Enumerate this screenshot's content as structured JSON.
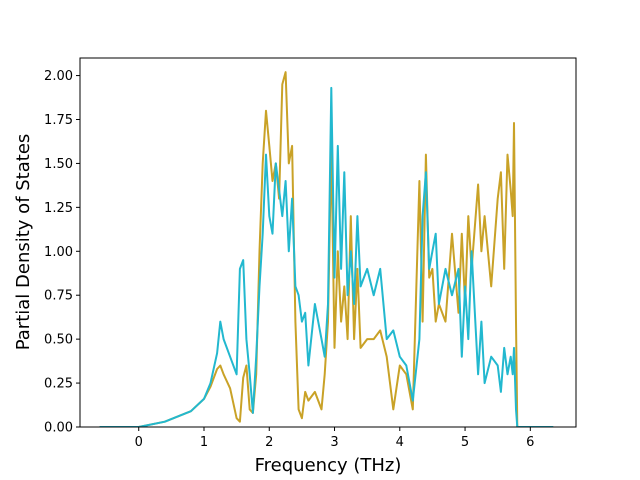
{
  "chart_data": {
    "type": "line",
    "title": "",
    "xlabel": "Frequency (THz)",
    "ylabel": "Partial Density of States",
    "xlim": [
      -0.9,
      6.7
    ],
    "ylim": [
      0,
      2.1
    ],
    "x_ticks": [
      0,
      1,
      2,
      3,
      4,
      5,
      6
    ],
    "y_ticks": [
      0.0,
      0.25,
      0.5,
      0.75,
      1.0,
      1.25,
      1.5,
      1.75,
      2.0
    ],
    "x_tick_labels": [
      "0",
      "1",
      "2",
      "3",
      "4",
      "5",
      "6"
    ],
    "y_tick_labels": [
      "0.00",
      "0.25",
      "0.50",
      "0.75",
      "1.00",
      "1.25",
      "1.50",
      "1.75",
      "2.00"
    ],
    "grid": false,
    "legend": "none",
    "colors": {
      "gold": "#c9a227",
      "teal": "#22b8cf",
      "red": "#d62728",
      "purple": "#9467bd"
    },
    "series": [
      {
        "color": "#c9a227",
        "x": [
          -0.6,
          0.0,
          0.4,
          0.8,
          1.0,
          1.1,
          1.2,
          1.25,
          1.3,
          1.4,
          1.5,
          1.55,
          1.6,
          1.65,
          1.7,
          1.75,
          1.8,
          1.85,
          1.9,
          1.95,
          2.0,
          2.05,
          2.1,
          2.15,
          2.2,
          2.25,
          2.3,
          2.35,
          2.4,
          2.45,
          2.5,
          2.55,
          2.6,
          2.7,
          2.8,
          2.85,
          2.9,
          2.95,
          3.0,
          3.05,
          3.1,
          3.15,
          3.2,
          3.25,
          3.3,
          3.35,
          3.4,
          3.5,
          3.6,
          3.7,
          3.8,
          3.9,
          4.0,
          4.1,
          4.2,
          4.3,
          4.35,
          4.4,
          4.45,
          4.5,
          4.55,
          4.6,
          4.7,
          4.8,
          4.9,
          4.95,
          5.0,
          5.05,
          5.1,
          5.2,
          5.25,
          5.3,
          5.4,
          5.5,
          5.55,
          5.6,
          5.65,
          5.7,
          5.73,
          5.75,
          5.78,
          5.8,
          5.82,
          6.0,
          6.35
        ],
        "y": [
          0.0,
          0.0,
          0.03,
          0.09,
          0.16,
          0.23,
          0.33,
          0.35,
          0.3,
          0.22,
          0.05,
          0.03,
          0.28,
          0.35,
          0.1,
          0.08,
          0.3,
          1.0,
          1.5,
          1.8,
          1.6,
          1.4,
          1.5,
          1.3,
          1.95,
          2.02,
          1.5,
          1.6,
          0.6,
          0.1,
          0.05,
          0.2,
          0.15,
          0.2,
          0.1,
          0.3,
          0.6,
          1.6,
          0.45,
          1.0,
          0.6,
          0.8,
          0.5,
          1.2,
          0.5,
          0.9,
          0.45,
          0.5,
          0.5,
          0.55,
          0.4,
          0.1,
          0.35,
          0.3,
          0.1,
          1.4,
          0.6,
          1.55,
          0.85,
          0.9,
          0.6,
          0.7,
          0.6,
          1.1,
          0.65,
          1.1,
          0.7,
          1.2,
          0.9,
          1.38,
          1.0,
          1.2,
          0.8,
          1.3,
          1.45,
          0.9,
          1.55,
          1.35,
          1.2,
          1.73,
          0.6,
          0.0,
          0.0,
          0.0,
          0.0
        ]
      },
      {
        "color": "#22b8cf",
        "x": [
          -0.6,
          0.0,
          0.4,
          0.8,
          1.0,
          1.1,
          1.2,
          1.25,
          1.3,
          1.4,
          1.5,
          1.55,
          1.6,
          1.65,
          1.7,
          1.75,
          1.8,
          1.85,
          1.9,
          1.95,
          2.0,
          2.05,
          2.1,
          2.15,
          2.2,
          2.25,
          2.3,
          2.35,
          2.4,
          2.45,
          2.5,
          2.55,
          2.6,
          2.7,
          2.8,
          2.85,
          2.9,
          2.95,
          3.0,
          3.05,
          3.1,
          3.15,
          3.2,
          3.25,
          3.3,
          3.35,
          3.4,
          3.5,
          3.6,
          3.7,
          3.8,
          3.9,
          4.0,
          4.1,
          4.2,
          4.3,
          4.35,
          4.4,
          4.45,
          4.5,
          4.55,
          4.6,
          4.7,
          4.8,
          4.9,
          4.95,
          5.0,
          5.05,
          5.1,
          5.2,
          5.25,
          5.3,
          5.4,
          5.5,
          5.55,
          5.6,
          5.65,
          5.7,
          5.73,
          5.75,
          5.78,
          5.8,
          5.82,
          6.0,
          6.35
        ],
        "y": [
          0.0,
          0.0,
          0.03,
          0.09,
          0.16,
          0.25,
          0.42,
          0.6,
          0.5,
          0.4,
          0.3,
          0.9,
          0.95,
          0.5,
          0.3,
          0.08,
          0.4,
          0.8,
          1.1,
          1.55,
          1.2,
          1.1,
          1.5,
          1.35,
          1.2,
          1.4,
          1.0,
          1.3,
          0.8,
          0.75,
          0.6,
          0.65,
          0.35,
          0.7,
          0.5,
          0.4,
          0.7,
          1.93,
          0.85,
          1.6,
          0.9,
          1.45,
          0.75,
          1.0,
          0.7,
          1.2,
          0.8,
          0.9,
          0.75,
          0.9,
          0.5,
          0.55,
          0.4,
          0.35,
          0.15,
          0.5,
          1.2,
          1.45,
          0.9,
          1.0,
          1.1,
          0.7,
          0.9,
          0.75,
          0.9,
          0.4,
          0.8,
          0.5,
          1.0,
          0.3,
          0.6,
          0.25,
          0.4,
          0.35,
          0.2,
          0.45,
          0.3,
          0.4,
          0.3,
          0.45,
          0.1,
          0.0,
          0.0,
          0.0,
          0.0
        ]
      }
    ]
  }
}
